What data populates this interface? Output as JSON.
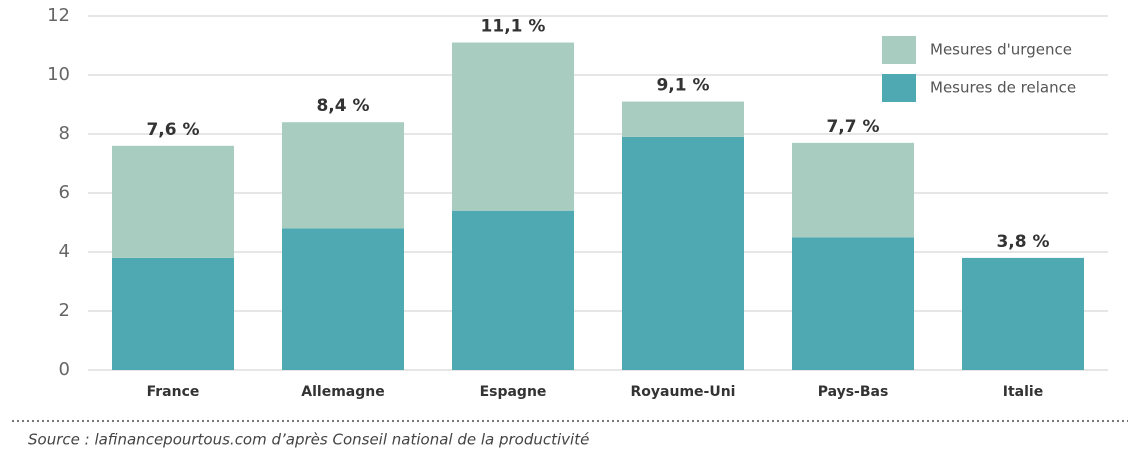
{
  "chart_data": {
    "type": "stacked_bar",
    "categories": [
      "France",
      "Allemagne",
      "Espagne",
      "Royaume-Uni",
      "Pays-Bas",
      "Italie"
    ],
    "series": [
      {
        "name": "Mesures de relance",
        "color": "#4fa9b3",
        "values": [
          3.8,
          4.8,
          5.4,
          7.9,
          4.5,
          3.8
        ]
      },
      {
        "name": "Mesures d'urgence",
        "color": "#a8cdc0",
        "values": [
          3.8,
          3.6,
          5.7,
          1.2,
          3.2,
          0
        ]
      }
    ],
    "total_labels": [
      "7,6 %",
      "8,4 %",
      "11,1 %",
      "9,1 %",
      "7,7 %",
      "3,8 %"
    ],
    "ylim": [
      0,
      12
    ],
    "yticks": [
      0,
      2,
      4,
      6,
      8,
      10,
      12
    ],
    "grid": true,
    "legend": "upper right",
    "source": "Source : lafinancepourtous.com d’après Conseil national de la productivité"
  }
}
